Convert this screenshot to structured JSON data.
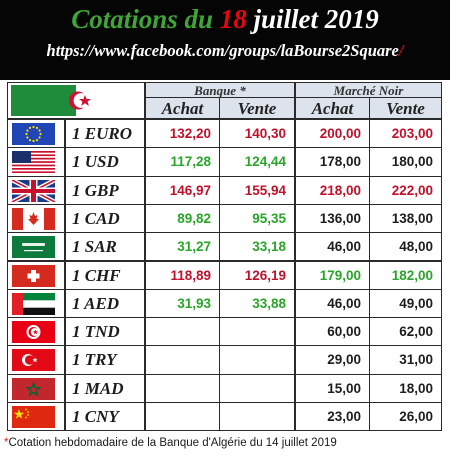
{
  "header": {
    "title_part1": "Cotations du ",
    "title_day": "18",
    "title_part2": " juillet 2019",
    "url": "https://www.facebook.com/groups/laBourse2Square",
    "url_slash": "/"
  },
  "table": {
    "group_bank": "Banque *",
    "group_black_market": "Marché Noir",
    "col_buy": "Achat",
    "col_sell": "Vente",
    "header_flag_icon": "algeria-flag-icon",
    "rows": [
      {
        "currency": "1 EURO",
        "flag": "eu-flag-icon",
        "bank_buy": "132,20",
        "bank_sell": "140,30",
        "bank_color": "#c0112b",
        "black_buy": "200,00",
        "black_sell": "203,00",
        "black_color": "#c0112b"
      },
      {
        "currency": "1 USD",
        "flag": "usa-flag-icon",
        "bank_buy": "117,28",
        "bank_sell": "124,44",
        "bank_color": "#2aa52a",
        "black_buy": "178,00",
        "black_sell": "180,00",
        "black_color": "#1d1d1d"
      },
      {
        "currency": "1 GBP",
        "flag": "uk-flag-icon",
        "bank_buy": "146,97",
        "bank_sell": "155,94",
        "bank_color": "#c0112b",
        "black_buy": "218,00",
        "black_sell": "222,00",
        "black_color": "#c0112b"
      },
      {
        "currency": "1 CAD",
        "flag": "canada-flag-icon",
        "bank_buy": "89,82",
        "bank_sell": "95,35",
        "bank_color": "#2aa52a",
        "black_buy": "136,00",
        "black_sell": "138,00",
        "black_color": "#1d1d1d"
      },
      {
        "currency": "1 SAR",
        "flag": "saudi-flag-icon",
        "bank_buy": "31,27",
        "bank_sell": "33,18",
        "bank_color": "#2aa52a",
        "black_buy": "46,00",
        "black_sell": "48,00",
        "black_color": "#1d1d1d"
      },
      {
        "currency": "1 CHF",
        "flag": "swiss-flag-icon",
        "bank_buy": "118,89",
        "bank_sell": "126,19",
        "bank_color": "#c0112b",
        "black_buy": "179,00",
        "black_sell": "182,00",
        "black_color": "#2aa52a"
      },
      {
        "currency": "1 AED",
        "flag": "uae-flag-icon",
        "bank_buy": "31,93",
        "bank_sell": "33,88",
        "bank_color": "#2aa52a",
        "black_buy": "46,00",
        "black_sell": "49,00",
        "black_color": "#1d1d1d"
      },
      {
        "currency": "1 TND",
        "flag": "tunisia-flag-icon",
        "bank_buy": "",
        "bank_sell": "",
        "bank_color": "#1d1d1d",
        "black_buy": "60,00",
        "black_sell": "62,00",
        "black_color": "#1d1d1d"
      },
      {
        "currency": "1 TRY",
        "flag": "turkey-flag-icon",
        "bank_buy": "",
        "bank_sell": "",
        "bank_color": "#1d1d1d",
        "black_buy": "29,00",
        "black_sell": "31,00",
        "black_color": "#1d1d1d"
      },
      {
        "currency": "1 MAD",
        "flag": "morocco-flag-icon",
        "bank_buy": "",
        "bank_sell": "",
        "bank_color": "#1d1d1d",
        "black_buy": "15,00",
        "black_sell": "18,00",
        "black_color": "#1d1d1d"
      },
      {
        "currency": "1 CNY",
        "flag": "china-flag-icon",
        "bank_buy": "",
        "bank_sell": "",
        "bank_color": "#1d1d1d",
        "black_buy": "23,00",
        "black_sell": "26,00",
        "black_color": "#1d1d1d"
      }
    ]
  },
  "footer": {
    "star": "*",
    "note": "Cotation hebdomadaire de la Banque d'Algérie du 14 juillet 2019"
  },
  "colors": {
    "header_bg": "#050505",
    "title_green": "#3fa535",
    "title_red": "#e30613",
    "header_cell_bg": "#dde3ec",
    "red_value": "#c0112b",
    "green_value": "#2aa52a"
  }
}
